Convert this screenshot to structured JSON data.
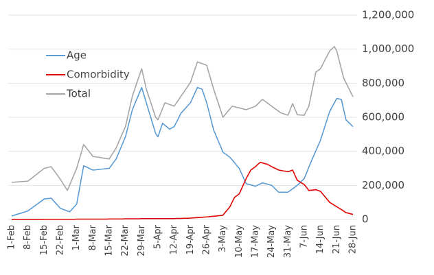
{
  "chart_data": {
    "type": "line",
    "categories": [
      "1-Feb",
      null,
      null,
      null,
      null,
      null,
      null,
      "8-Feb",
      null,
      null,
      null,
      null,
      null,
      null,
      "15-Feb",
      null,
      null,
      null,
      null,
      null,
      null,
      "22-Feb",
      null,
      null,
      null,
      null,
      null,
      null,
      "1-Mar",
      null,
      null,
      null,
      null,
      null,
      null,
      "8-Mar",
      null,
      null,
      null,
      null,
      null,
      null,
      "15-Mar",
      null,
      null,
      null,
      null,
      null,
      null,
      "22-Mar",
      null,
      null,
      null,
      null,
      null,
      null,
      "29-Mar",
      null,
      null,
      null,
      null,
      null,
      null,
      "5-Apr",
      null,
      null,
      null,
      null,
      null,
      null,
      "12-Apr",
      null,
      null,
      null,
      null,
      null,
      null,
      "19-Apr",
      null,
      null,
      null,
      null,
      null,
      null,
      "26-Apr",
      null,
      null,
      null,
      null,
      null,
      null,
      "3-May",
      null,
      null,
      null,
      null,
      null,
      null,
      "10-May",
      null,
      null,
      null,
      null,
      null,
      null,
      "17-May",
      null,
      null,
      null,
      null,
      null,
      null,
      "24-May",
      null,
      null,
      null,
      null,
      null,
      null,
      "31-May",
      null,
      null,
      null,
      null,
      null,
      null,
      "7-Jun",
      null,
      null,
      null,
      null,
      null,
      null,
      "14-Jun",
      null,
      null,
      null,
      null,
      null,
      null,
      "21-Jun",
      null,
      null,
      null,
      null,
      null,
      null,
      "28-Jun"
    ],
    "series": [
      {
        "name": "Age",
        "color": "#5b9bd5",
        "values": [
          20000,
          24000,
          29000,
          33000,
          37000,
          41000,
          46000,
          50000,
          60000,
          70000,
          80000,
          90000,
          100000,
          110000,
          120000,
          122000,
          123000,
          125000,
          110000,
          95000,
          80000,
          65000,
          60000,
          55000,
          50000,
          45000,
          60000,
          75000,
          90000,
          165000,
          240000,
          315000,
          309000,
          303000,
          296000,
          290000,
          291000,
          293000,
          294000,
          296000,
          297000,
          299000,
          300000,
          318000,
          337000,
          355000,
          388000,
          420000,
          453000,
          485000,
          538000,
          592000,
          645000,
          678000,
          710000,
          743000,
          775000,
          730000,
          685000,
          640000,
          595000,
          550000,
          505000,
          485000,
          525000,
          565000,
          553000,
          542000,
          530000,
          538000,
          545000,
          572000,
          598000,
          625000,
          640000,
          655000,
          670000,
          685000,
          715000,
          745000,
          775000,
          770000,
          765000,
          725000,
          685000,
          632000,
          578000,
          525000,
          493000,
          460000,
          428000,
          395000,
          385000,
          375000,
          365000,
          349000,
          333000,
          316000,
          300000,
          270000,
          240000,
          210000,
          206000,
          203000,
          199000,
          195000,
          202000,
          208000,
          215000,
          211000,
          208000,
          204000,
          200000,
          187000,
          173000,
          160000,
          160000,
          160000,
          160000,
          160000,
          170000,
          180000,
          190000,
          200000,
          213000,
          227000,
          240000,
          273000,
          307000,
          340000,
          371000,
          403000,
          434000,
          465000,
          508000,
          550000,
          593000,
          635000,
          660000,
          685000,
          710000,
          708000,
          705000,
          645000,
          585000,
          572000,
          558000,
          545000
        ]
      },
      {
        "name": "Comorbidity",
        "color": "#e00000",
        "values": [
          0,
          0,
          0,
          0,
          0,
          0,
          0,
          0,
          0,
          0,
          0,
          0,
          0,
          0,
          1000,
          1000,
          1000,
          1000,
          1000,
          1000,
          1000,
          1000,
          1000,
          1000,
          1000,
          1000,
          1000,
          1000,
          2000,
          2000,
          2000,
          2000,
          2000,
          2000,
          2000,
          2000,
          2000,
          2000,
          2000,
          2000,
          2000,
          2000,
          3000,
          3000,
          3000,
          3000,
          3000,
          3000,
          3000,
          4000,
          4000,
          4000,
          4000,
          4000,
          4000,
          4000,
          5000,
          5000,
          5000,
          5000,
          5000,
          5000,
          5000,
          5000,
          5000,
          5000,
          5000,
          5000,
          5000,
          5000,
          5000,
          6000,
          6000,
          6000,
          7000,
          7000,
          7000,
          8000,
          9000,
          10000,
          11000,
          12000,
          13000,
          14000,
          15000,
          16000,
          18000,
          19000,
          20000,
          22000,
          23000,
          25000,
          42000,
          58000,
          75000,
          103000,
          130000,
          140000,
          150000,
          180000,
          210000,
          240000,
          265000,
          290000,
          300000,
          310000,
          323000,
          335000,
          332000,
          328000,
          325000,
          318000,
          310000,
          303000,
          297000,
          290000,
          288000,
          285000,
          283000,
          280000,
          285000,
          290000,
          260000,
          230000,
          222000,
          213000,
          205000,
          188000,
          170000,
          172000,
          173000,
          175000,
          170000,
          165000,
          149000,
          133000,
          116000,
          100000,
          92000,
          83000,
          75000,
          66000,
          58000,
          49000,
          40000,
          37000,
          33000,
          30000
        ]
      },
      {
        "name": "Total",
        "color": "#a5a5a5",
        "values": [
          218000,
          219000,
          220000,
          221000,
          222000,
          223000,
          224000,
          225000,
          236000,
          246000,
          257000,
          268000,
          279000,
          289000,
          300000,
          303000,
          307000,
          310000,
          291000,
          273000,
          254000,
          235000,
          213000,
          192000,
          170000,
          203000,
          235000,
          268000,
          300000,
          347000,
          393000,
          440000,
          423000,
          405000,
          388000,
          370000,
          368000,
          366000,
          364000,
          361000,
          359000,
          357000,
          355000,
          377000,
          398000,
          420000,
          451000,
          483000,
          514000,
          545000,
          605000,
          665000,
          725000,
          765000,
          805000,
          845000,
          885000,
          825000,
          765000,
          724000,
          683000,
          641000,
          600000,
          585000,
          618000,
          652000,
          685000,
          680000,
          675000,
          670000,
          665000,
          685000,
          705000,
          725000,
          745000,
          765000,
          785000,
          805000,
          845000,
          885000,
          925000,
          920000,
          915000,
          910000,
          905000,
          858000,
          812000,
          765000,
          724000,
          683000,
          641000,
          600000,
          616000,
          633000,
          649000,
          665000,
          662000,
          658000,
          655000,
          652000,
          648000,
          645000,
          650000,
          655000,
          660000,
          665000,
          678000,
          692000,
          705000,
          695000,
          685000,
          675000,
          665000,
          655000,
          645000,
          635000,
          625000,
          621000,
          616000,
          612000,
          646000,
          680000,
          648000,
          615000,
          614000,
          613000,
          612000,
          638000,
          665000,
          732000,
          798000,
          865000,
          875000,
          885000,
          911000,
          938000,
          964000,
          990000,
          1003000,
          1015000,
          990000,
          937000,
          883000,
          830000,
          803000,
          775000,
          748000,
          720000
        ]
      }
    ],
    "ylim": [
      0,
      1200000
    ],
    "yticks": [
      0,
      {
        "value": 200000,
        "label": "200,000"
      },
      {
        "value": 400000,
        "label": "400,000"
      },
      {
        "value": 600000,
        "label": "600,000"
      },
      {
        "value": 800000,
        "label": "800,000"
      },
      {
        "value": 1000000,
        "label": "1,000,000"
      },
      {
        "value": 1200000,
        "label": "1,200,000"
      }
    ],
    "grid": true,
    "legend": "upper left"
  }
}
